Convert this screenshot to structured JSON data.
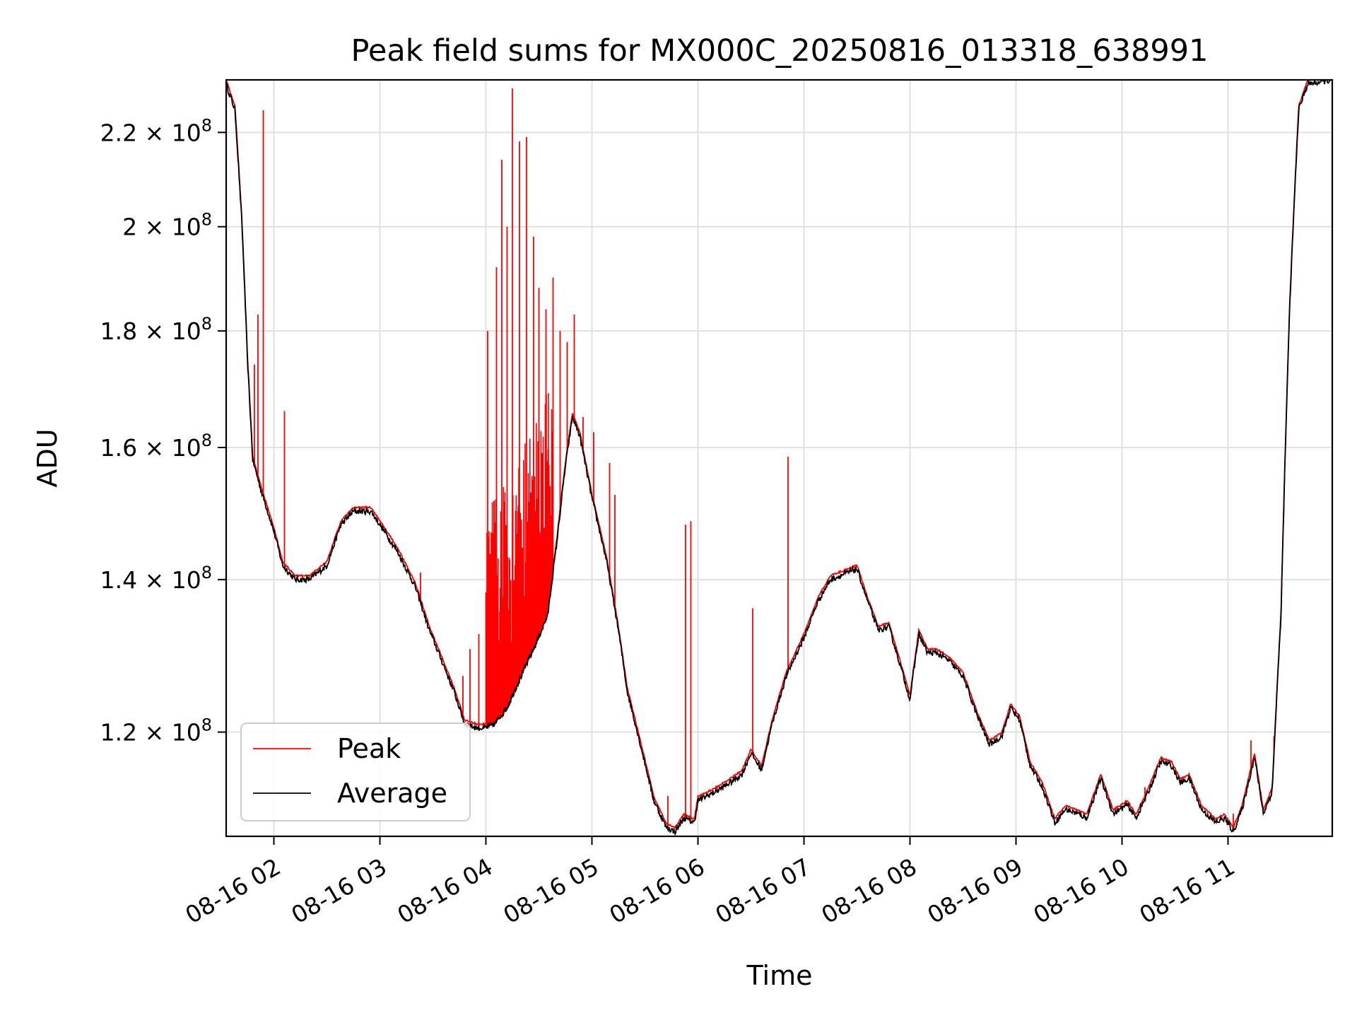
{
  "chart_data": {
    "type": "line",
    "title": "Peak field sums for MX000C_20250816_013318_638991",
    "xlabel": "Time",
    "ylabel": "ADU",
    "y_scale": "log",
    "xlim": [
      "08-16 01:33",
      "08-16 11:59"
    ],
    "ylim": [
      108000000,
      232000000
    ],
    "grid": true,
    "legend_position": "lower-left",
    "x_ticks": [
      {
        "value": "08-16 02:00",
        "label": "08-16 02"
      },
      {
        "value": "08-16 03:00",
        "label": "08-16 03"
      },
      {
        "value": "08-16 04:00",
        "label": "08-16 04"
      },
      {
        "value": "08-16 05:00",
        "label": "08-16 05"
      },
      {
        "value": "08-16 06:00",
        "label": "08-16 06"
      },
      {
        "value": "08-16 07:00",
        "label": "08-16 07"
      },
      {
        "value": "08-16 08:00",
        "label": "08-16 08"
      },
      {
        "value": "08-16 09:00",
        "label": "08-16 09"
      },
      {
        "value": "08-16 10:00",
        "label": "08-16 10"
      },
      {
        "value": "08-16 11:00",
        "label": "08-16 11"
      }
    ],
    "y_ticks": [
      {
        "value": 120000000,
        "mantissa": "1.2",
        "exponent": "8"
      },
      {
        "value": 140000000,
        "mantissa": "1.4",
        "exponent": "8"
      },
      {
        "value": 160000000,
        "mantissa": "1.6",
        "exponent": "8"
      },
      {
        "value": 180000000,
        "mantissa": "1.8",
        "exponent": "8"
      },
      {
        "value": 200000000,
        "mantissa": "2",
        "exponent": "8"
      },
      {
        "value": 220000000,
        "mantissa": "2.2",
        "exponent": "8"
      }
    ],
    "series": [
      {
        "name": "Average",
        "color": "#000000",
        "points": [
          [
            "08-16 01:33",
            231000000
          ],
          [
            "08-16 01:38",
            225000000
          ],
          [
            "08-16 01:42",
            200000000
          ],
          [
            "08-16 01:45",
            175000000
          ],
          [
            "08-16 01:48",
            158000000
          ],
          [
            "08-16 01:53",
            153000000
          ],
          [
            "08-16 02:00",
            147000000
          ],
          [
            "08-16 02:05",
            142000000
          ],
          [
            "08-16 02:12",
            140000000
          ],
          [
            "08-16 02:20",
            140000000
          ],
          [
            "08-16 02:30",
            142000000
          ],
          [
            "08-16 02:38",
            148000000
          ],
          [
            "08-16 02:45",
            150000000
          ],
          [
            "08-16 02:55",
            150000000
          ],
          [
            "08-16 03:00",
            148000000
          ],
          [
            "08-16 03:10",
            144000000
          ],
          [
            "08-16 03:20",
            139000000
          ],
          [
            "08-16 03:28",
            133000000
          ],
          [
            "08-16 03:35",
            129000000
          ],
          [
            "08-16 03:42",
            125000000
          ],
          [
            "08-16 03:48",
            121000000
          ],
          [
            "08-16 03:55",
            120500000
          ],
          [
            "08-16 04:00",
            120500000
          ],
          [
            "08-16 04:05",
            121000000
          ],
          [
            "08-16 04:12",
            123000000
          ],
          [
            "08-16 04:20",
            127000000
          ],
          [
            "08-16 04:28",
            131000000
          ],
          [
            "08-16 04:35",
            135000000
          ],
          [
            "08-16 04:40",
            145000000
          ],
          [
            "08-16 04:45",
            157000000
          ],
          [
            "08-16 04:49",
            165000000
          ],
          [
            "08-16 04:53",
            162000000
          ],
          [
            "08-16 05:00",
            152000000
          ],
          [
            "08-16 05:08",
            143000000
          ],
          [
            "08-16 05:15",
            133000000
          ],
          [
            "08-16 05:20",
            125000000
          ],
          [
            "08-16 05:28",
            118000000
          ],
          [
            "08-16 05:35",
            112000000
          ],
          [
            "08-16 05:42",
            109000000
          ],
          [
            "08-16 05:47",
            108500000
          ],
          [
            "08-16 05:52",
            110000000
          ],
          [
            "08-16 05:58",
            109500000
          ],
          [
            "08-16 06:00",
            112000000
          ],
          [
            "08-16 06:05",
            112500000
          ],
          [
            "08-16 06:10",
            113000000
          ],
          [
            "08-16 06:18",
            114000000
          ],
          [
            "08-16 06:25",
            115000000
          ],
          [
            "08-16 06:30",
            117500000
          ],
          [
            "08-16 06:36",
            115500000
          ],
          [
            "08-16 06:42",
            121000000
          ],
          [
            "08-16 06:50",
            127000000
          ],
          [
            "08-16 07:00",
            132000000
          ],
          [
            "08-16 07:08",
            137000000
          ],
          [
            "08-16 07:15",
            140000000
          ],
          [
            "08-16 07:25",
            141000000
          ],
          [
            "08-16 07:30",
            141500000
          ],
          [
            "08-16 07:36",
            137000000
          ],
          [
            "08-16 07:42",
            133000000
          ],
          [
            "08-16 07:48",
            133500000
          ],
          [
            "08-16 07:55",
            128000000
          ],
          [
            "08-16 08:00",
            124000000
          ],
          [
            "08-16 08:05",
            132500000
          ],
          [
            "08-16 08:10",
            130000000
          ],
          [
            "08-16 08:15",
            130000000
          ],
          [
            "08-16 08:22",
            129000000
          ],
          [
            "08-16 08:30",
            127000000
          ],
          [
            "08-16 08:38",
            122000000
          ],
          [
            "08-16 08:45",
            118500000
          ],
          [
            "08-16 08:52",
            119500000
          ],
          [
            "08-16 08:57",
            123000000
          ],
          [
            "08-16 09:02",
            121500000
          ],
          [
            "08-16 09:08",
            116000000
          ],
          [
            "08-16 09:15",
            113500000
          ],
          [
            "08-16 09:22",
            109500000
          ],
          [
            "08-16 09:28",
            111000000
          ],
          [
            "08-16 09:35",
            110500000
          ],
          [
            "08-16 09:40",
            110000000
          ],
          [
            "08-16 09:48",
            114500000
          ],
          [
            "08-16 09:55",
            110500000
          ],
          [
            "08-16 10:03",
            111500000
          ],
          [
            "08-16 10:08",
            110000000
          ],
          [
            "08-16 10:15",
            113000000
          ],
          [
            "08-16 10:22",
            116500000
          ],
          [
            "08-16 10:28",
            116000000
          ],
          [
            "08-16 10:33",
            114000000
          ],
          [
            "08-16 10:38",
            114500000
          ],
          [
            "08-16 10:45",
            111000000
          ],
          [
            "08-16 10:53",
            109500000
          ],
          [
            "08-16 10:58",
            110000000
          ],
          [
            "08-16 11:03",
            108500000
          ],
          [
            "08-16 11:08",
            111000000
          ],
          [
            "08-16 11:15",
            117000000
          ],
          [
            "08-16 11:20",
            110500000
          ],
          [
            "08-16 11:25",
            113000000
          ],
          [
            "08-16 11:30",
            135000000
          ],
          [
            "08-16 11:35",
            185000000
          ],
          [
            "08-16 11:40",
            225000000
          ],
          [
            "08-16 11:45",
            231000000
          ],
          [
            "08-16 11:59",
            232000000
          ]
        ]
      },
      {
        "name": "Peak",
        "color": "#ff0000",
        "spikes": [
          [
            "08-16 01:49",
            174000000
          ],
          [
            "08-16 01:51",
            183000000
          ],
          [
            "08-16 01:54",
            225000000
          ],
          [
            "08-16 02:06",
            166000000
          ],
          [
            "08-16 03:23",
            141000000
          ],
          [
            "08-16 03:47",
            127000000
          ],
          [
            "08-16 03:51",
            130500000
          ],
          [
            "08-16 03:56",
            132500000
          ],
          [
            "08-16 04:01",
            180000000
          ],
          [
            "08-16 04:06",
            192000000
          ],
          [
            "08-16 04:09",
            214000000
          ],
          [
            "08-16 04:12",
            200000000
          ],
          [
            "08-16 04:15",
            230000000
          ],
          [
            "08-16 04:19",
            218000000
          ],
          [
            "08-16 04:23",
            219000000
          ],
          [
            "08-16 04:27",
            198000000
          ],
          [
            "08-16 04:30",
            188000000
          ],
          [
            "08-16 04:34",
            184000000
          ],
          [
            "08-16 04:38",
            190000000
          ],
          [
            "08-16 04:42",
            180000000
          ],
          [
            "08-16 04:46",
            178000000
          ],
          [
            "08-16 04:50",
            183000000
          ],
          [
            "08-16 04:55",
            165000000
          ],
          [
            "08-16 05:01",
            162500000
          ],
          [
            "08-16 05:10",
            157500000
          ],
          [
            "08-16 05:13",
            152500000
          ],
          [
            "08-16 05:26",
            120000000
          ],
          [
            "08-16 05:43",
            112500000
          ],
          [
            "08-16 05:53",
            148000000
          ],
          [
            "08-16 05:56",
            148500000
          ],
          [
            "08-16 06:31",
            136000000
          ],
          [
            "08-16 06:51",
            158500000
          ],
          [
            "08-16 10:13",
            113500000
          ],
          [
            "08-16 11:03",
            110500000
          ],
          [
            "08-16 11:13",
            119000000
          ],
          [
            "08-16 11:26",
            119500000
          ]
        ]
      }
    ]
  }
}
